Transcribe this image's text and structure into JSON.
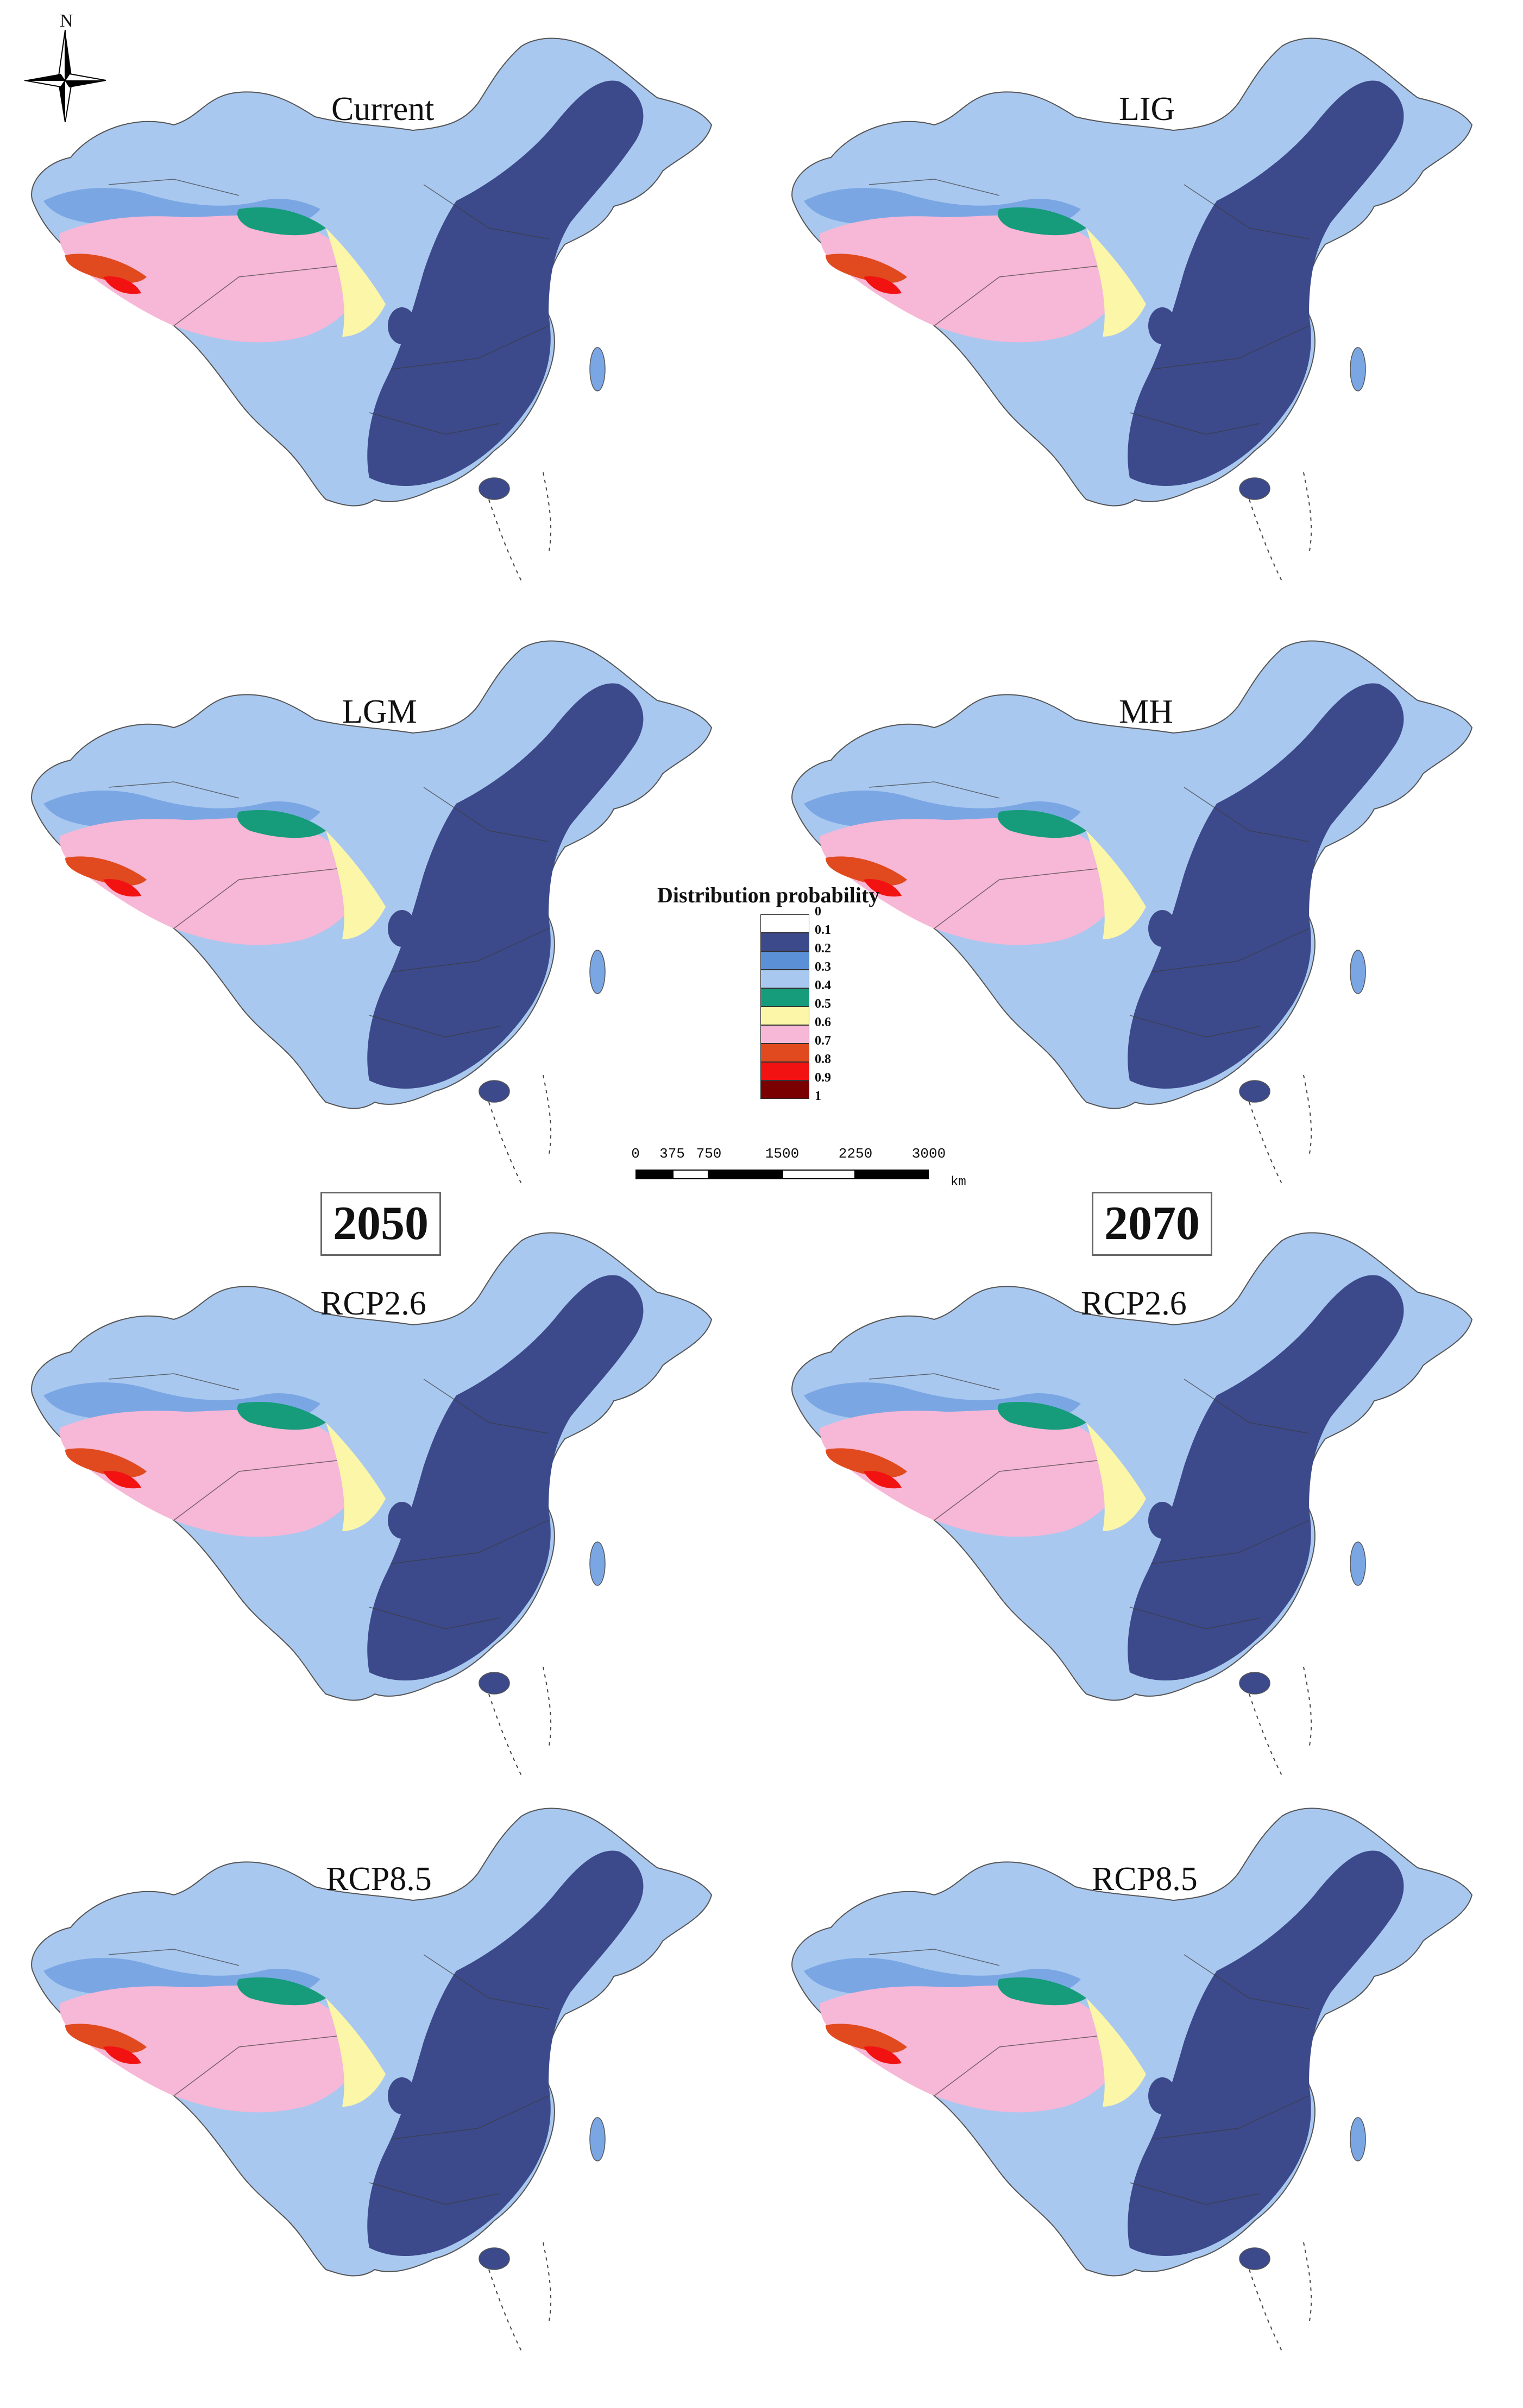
{
  "compass": {
    "label": "N",
    "icon": "north-arrow-icon"
  },
  "panels": [
    {
      "label": "Current"
    },
    {
      "label": "LIG"
    },
    {
      "label": "LGM"
    },
    {
      "label": "MH"
    },
    {
      "label": "RCP2.6"
    },
    {
      "label": "RCP2.6"
    },
    {
      "label": "RCP8.5"
    },
    {
      "label": "RCP8.5"
    }
  ],
  "years": [
    "2050",
    "2070"
  ],
  "legend": {
    "title": "Distribution probability",
    "breaks": [
      "0",
      "0.1",
      "0.2",
      "0.3",
      "0.4",
      "0.5",
      "0.6",
      "0.7",
      "0.8",
      "0.9",
      "1"
    ],
    "colors": [
      "#ffffff",
      "#3c4a8c",
      "#5b8fd6",
      "#a9c8ef",
      "#169c7b",
      "#fbf6a8",
      "#f7b7d6",
      "#e04a1e",
      "#f21212",
      "#7a0000"
    ]
  },
  "scale_bar": {
    "ticks": [
      "0",
      "375",
      "750",
      "1500",
      "2250",
      "3000"
    ],
    "unit": "km"
  }
}
